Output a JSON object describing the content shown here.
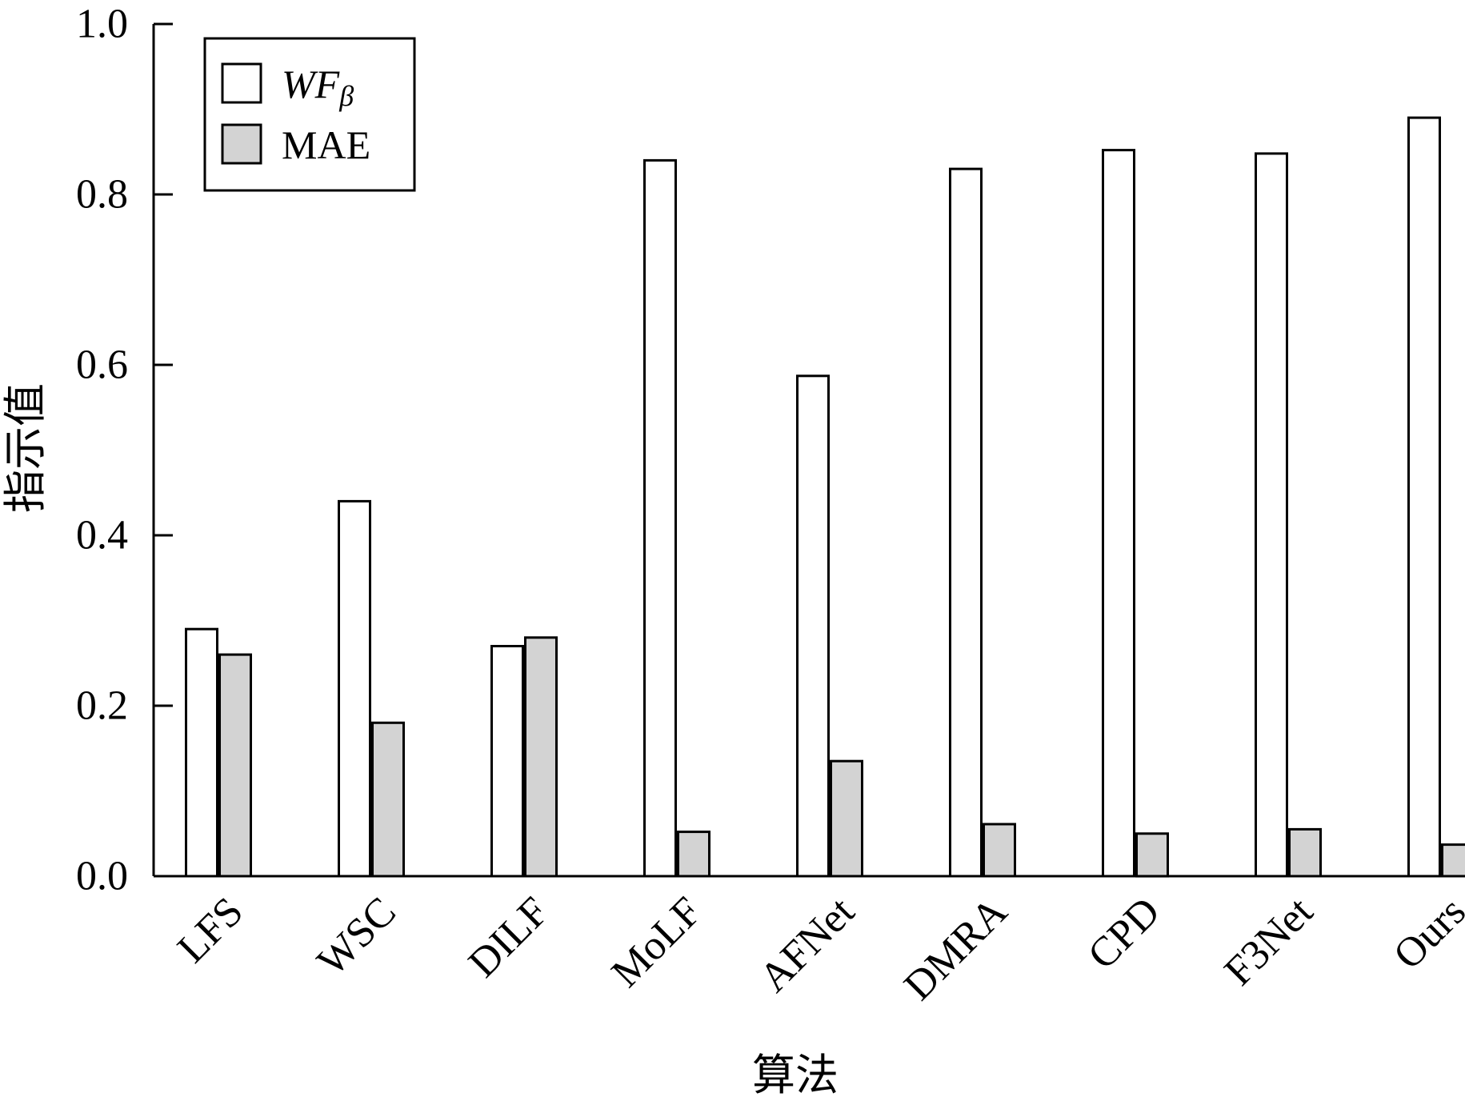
{
  "chart_data": {
    "type": "bar",
    "title": "",
    "xlabel": "算法",
    "ylabel": "指示值",
    "ylim": [
      0,
      1.0
    ],
    "yticks": [
      "0.0",
      "0.2",
      "0.4",
      "0.6",
      "0.8",
      "1.0"
    ],
    "ytick_values": [
      0.0,
      0.2,
      0.4,
      0.6,
      0.8,
      1.0
    ],
    "categories": [
      "LFS",
      "WSC",
      "DILF",
      "MoLF",
      "AFNet",
      "DMRA",
      "CPD",
      "F3Net",
      "Ours"
    ],
    "series": [
      {
        "name": "WF_β",
        "legend_main": "WF",
        "legend_sub": "β",
        "color": "#ffffff",
        "values": [
          0.29,
          0.44,
          0.27,
          0.84,
          0.587,
          0.83,
          0.852,
          0.848,
          0.89
        ]
      },
      {
        "name": "MAE",
        "legend_main": "MAE",
        "legend_sub": "",
        "color": "#d3d3d3",
        "values": [
          0.26,
          0.18,
          0.28,
          0.052,
          0.135,
          0.061,
          0.05,
          0.055,
          0.037
        ]
      }
    ],
    "legend_position": "top-left",
    "grid": false
  }
}
